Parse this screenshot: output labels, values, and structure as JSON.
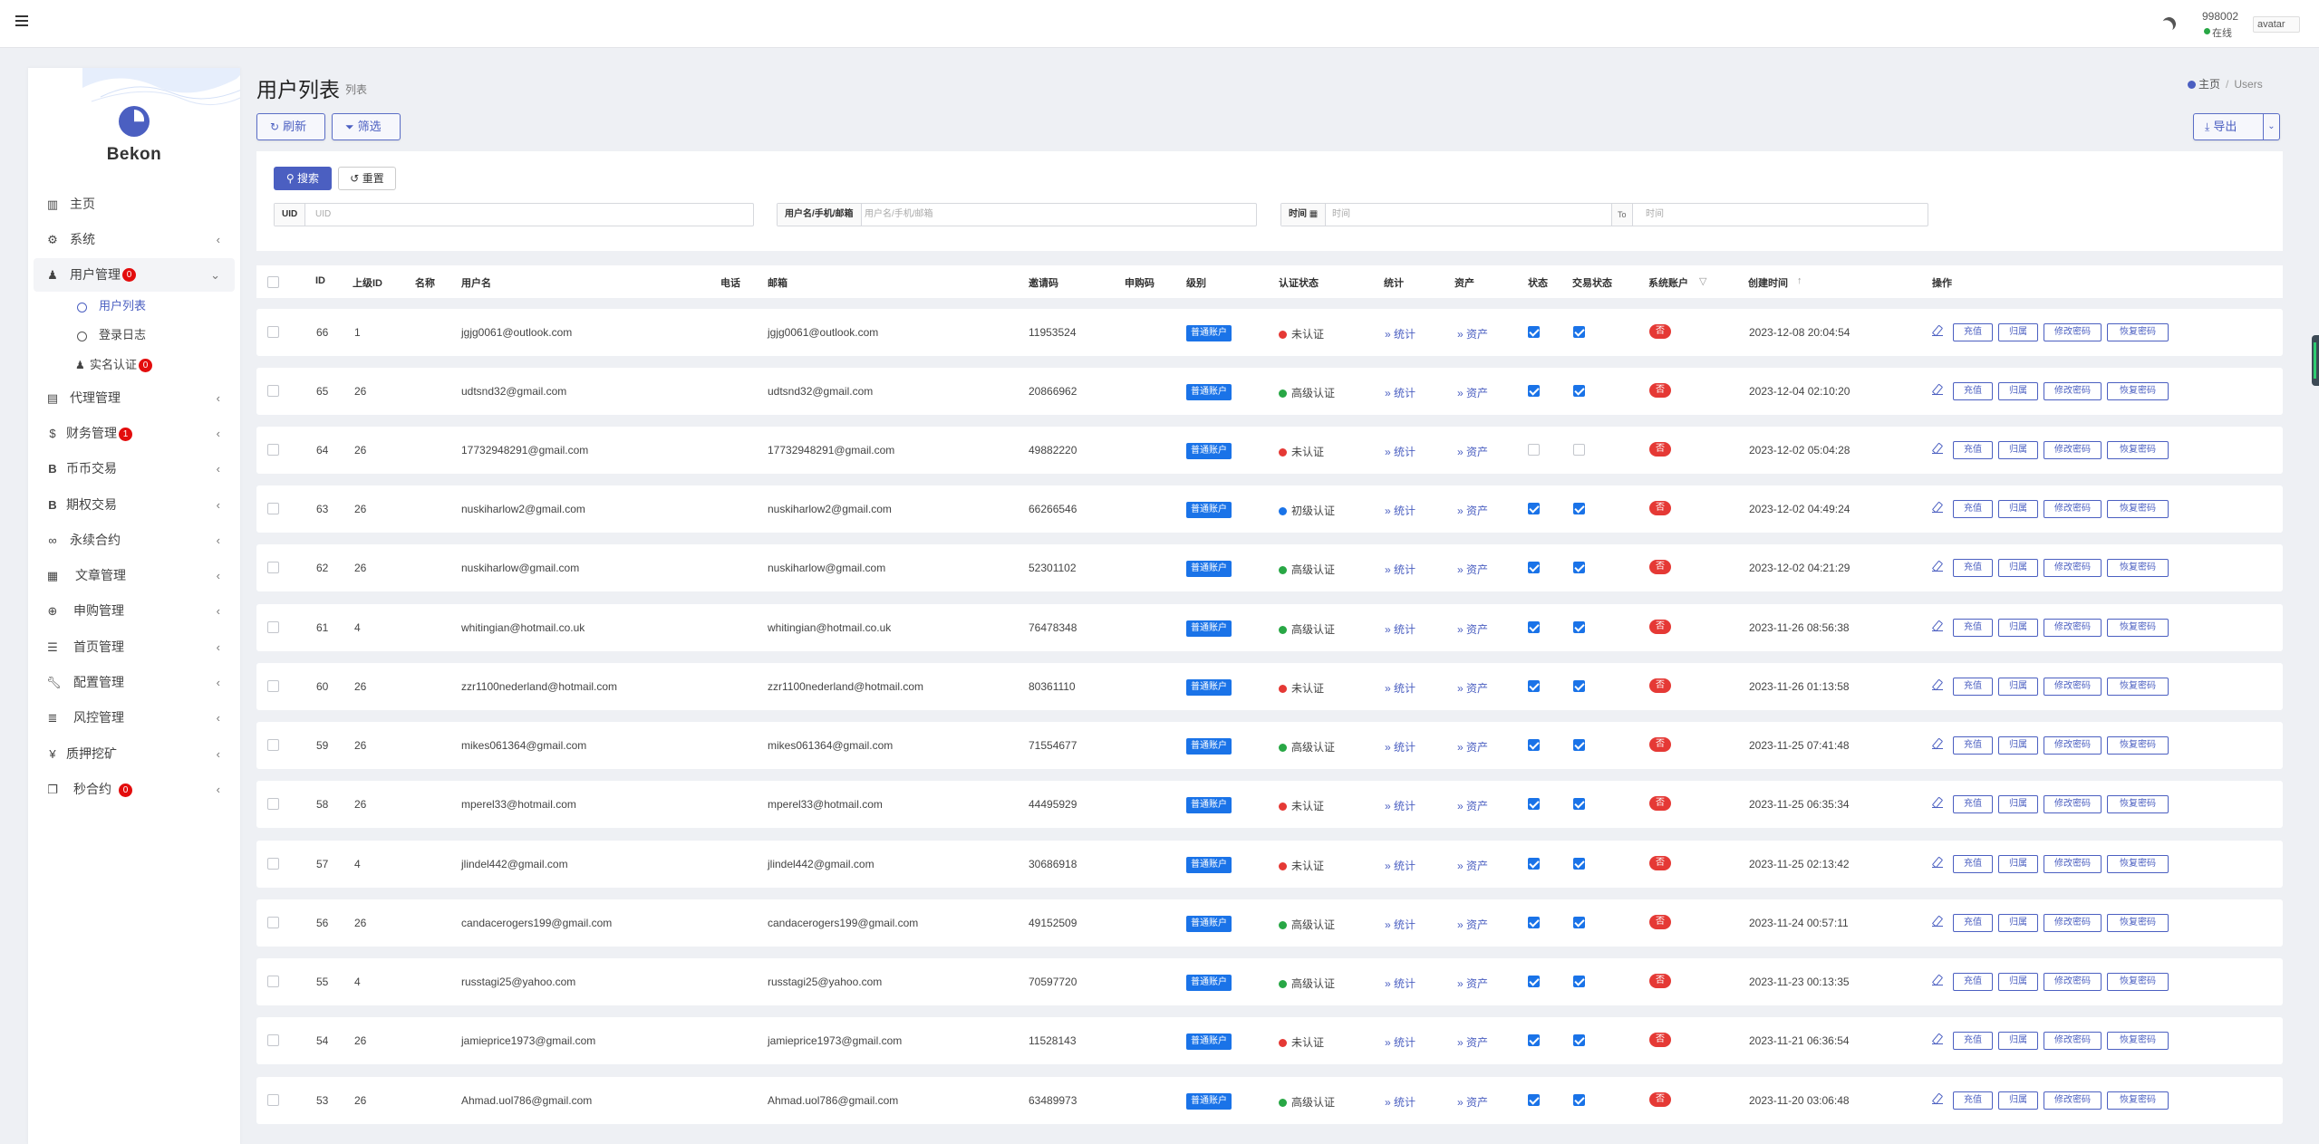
{
  "topbar": {
    "user_id": "998002",
    "user_status": "在线",
    "avatar_alt": "avatar"
  },
  "sidebar": {
    "brand": "Bekon",
    "items": [
      {
        "label": "主页",
        "icon": "chart-icon",
        "badge": ""
      },
      {
        "label": "系统",
        "icon": "gear-icon",
        "badge": ""
      },
      {
        "label": "用户管理",
        "icon": "user-icon",
        "badge": "0"
      },
      {
        "label": "代理管理",
        "icon": "id-card-icon",
        "badge": ""
      },
      {
        "label": "财务管理",
        "icon": "dollar-icon",
        "badge": "1"
      },
      {
        "label": "币币交易",
        "icon": "bitcoin-icon",
        "badge": ""
      },
      {
        "label": "期权交易",
        "icon": "bitcoin-icon",
        "badge": ""
      },
      {
        "label": "永续合约",
        "icon": "link-icon",
        "badge": ""
      },
      {
        "label": "文章管理",
        "icon": "newspaper-icon",
        "badge": ""
      },
      {
        "label": "申购管理",
        "icon": "support-icon",
        "badge": ""
      },
      {
        "label": "首页管理",
        "icon": "list-icon",
        "badge": ""
      },
      {
        "label": "配置管理",
        "icon": "wrench-icon",
        "badge": ""
      },
      {
        "label": "风控管理",
        "icon": "list-alt-icon",
        "badge": ""
      },
      {
        "label": "质押挖矿",
        "icon": "yen-icon",
        "badge": ""
      },
      {
        "label": "秒合约",
        "icon": "copy-icon",
        "badge": "0"
      }
    ],
    "subitems": [
      {
        "label": "用户列表"
      },
      {
        "label": "登录日志"
      },
      {
        "label": "实名认证",
        "badge": "0"
      }
    ]
  },
  "header": {
    "title": "用户列表",
    "subtitle": "列表",
    "breadcrumb_home": "主页",
    "breadcrumb_current": "Users"
  },
  "toolbar": {
    "refresh": "刷新",
    "filter": "筛选",
    "export": "导出"
  },
  "search": {
    "search_btn": "搜索",
    "reset_btn": "重置",
    "uid_label": "UID",
    "uid_placeholder": "UID",
    "user_label": "用户名/手机/邮箱",
    "user_placeholder": "用户名/手机/邮箱",
    "time_label": "时间",
    "time_from_placeholder": "时间",
    "time_to": "To",
    "time_to_placeholder": "时间"
  },
  "table": {
    "columns": [
      "ID",
      "上级ID",
      "名称",
      "用户名",
      "电话",
      "邮箱",
      "邀请码",
      "申购码",
      "级别",
      "认证状态",
      "统计",
      "资产",
      "状态",
      "交易状态",
      "系统账户",
      "创建时间",
      "操作"
    ],
    "level_tag": "普通账户",
    "stat_link": "» 统计",
    "asset_link": "» 资产",
    "sys_no": "否",
    "actions": [
      "充值",
      "归属",
      "修改密码",
      "恢复密码"
    ],
    "rows": [
      {
        "id": "66",
        "parent": "1",
        "username": "jgjg0061@outlook.com",
        "email": "jgjg0061@outlook.com",
        "invite": "11953524",
        "auth": "未认证",
        "auth_color": "#e53935",
        "status": true,
        "trade": true,
        "created": "2023-12-08 20:04:54"
      },
      {
        "id": "65",
        "parent": "26",
        "username": "udtsnd32@gmail.com",
        "email": "udtsnd32@gmail.com",
        "invite": "20866962",
        "auth": "高级认证",
        "auth_color": "#28a745",
        "status": true,
        "trade": true,
        "created": "2023-12-04 02:10:20"
      },
      {
        "id": "64",
        "parent": "26",
        "username": "17732948291@gmail.com",
        "email": "17732948291@gmail.com",
        "invite": "49882220",
        "auth": "未认证",
        "auth_color": "#e53935",
        "status": false,
        "trade": false,
        "created": "2023-12-02 05:04:28"
      },
      {
        "id": "63",
        "parent": "26",
        "username": "nuskiharlow2@gmail.com",
        "email": "nuskiharlow2@gmail.com",
        "invite": "66266546",
        "auth": "初级认证",
        "auth_color": "#1a73e8",
        "status": true,
        "trade": true,
        "created": "2023-12-02 04:49:24"
      },
      {
        "id": "62",
        "parent": "26",
        "username": "nuskiharlow@gmail.com",
        "email": "nuskiharlow@gmail.com",
        "invite": "52301102",
        "auth": "高级认证",
        "auth_color": "#28a745",
        "status": true,
        "trade": true,
        "created": "2023-12-02 04:21:29"
      },
      {
        "id": "61",
        "parent": "4",
        "username": "whitingian@hotmail.co.uk",
        "email": "whitingian@hotmail.co.uk",
        "invite": "76478348",
        "auth": "高级认证",
        "auth_color": "#28a745",
        "status": true,
        "trade": true,
        "created": "2023-11-26 08:56:38"
      },
      {
        "id": "60",
        "parent": "26",
        "username": "zzr1100nederland@hotmail.com",
        "email": "zzr1100nederland@hotmail.com",
        "invite": "80361110",
        "auth": "未认证",
        "auth_color": "#e53935",
        "status": true,
        "trade": true,
        "created": "2023-11-26 01:13:58"
      },
      {
        "id": "59",
        "parent": "26",
        "username": "mikes061364@gmail.com",
        "email": "mikes061364@gmail.com",
        "invite": "71554677",
        "auth": "高级认证",
        "auth_color": "#28a745",
        "status": true,
        "trade": true,
        "created": "2023-11-25 07:41:48"
      },
      {
        "id": "58",
        "parent": "26",
        "username": "mperel33@hotmail.com",
        "email": "mperel33@hotmail.com",
        "invite": "44495929",
        "auth": "未认证",
        "auth_color": "#e53935",
        "status": true,
        "trade": true,
        "created": "2023-11-25 06:35:34"
      },
      {
        "id": "57",
        "parent": "4",
        "username": "jlindel442@gmail.com",
        "email": "jlindel442@gmail.com",
        "invite": "30686918",
        "auth": "未认证",
        "auth_color": "#e53935",
        "status": true,
        "trade": true,
        "created": "2023-11-25 02:13:42"
      },
      {
        "id": "56",
        "parent": "26",
        "username": "candacerogers199@gmail.com",
        "email": "candacerogers199@gmail.com",
        "invite": "49152509",
        "auth": "高级认证",
        "auth_color": "#28a745",
        "status": true,
        "trade": true,
        "created": "2023-11-24 00:57:11"
      },
      {
        "id": "55",
        "parent": "4",
        "username": "russtagi25@yahoo.com",
        "email": "russtagi25@yahoo.com",
        "invite": "70597720",
        "auth": "高级认证",
        "auth_color": "#28a745",
        "status": true,
        "trade": true,
        "created": "2023-11-23 00:13:35"
      },
      {
        "id": "54",
        "parent": "26",
        "username": "jamieprice1973@gmail.com",
        "email": "jamieprice1973@gmail.com",
        "invite": "11528143",
        "auth": "未认证",
        "auth_color": "#e53935",
        "status": true,
        "trade": true,
        "created": "2023-11-21 06:36:54"
      },
      {
        "id": "53",
        "parent": "26",
        "username": "Ahmad.uol786@gmail.com",
        "email": "Ahmad.uol786@gmail.com",
        "invite": "63489973",
        "auth": "高级认证",
        "auth_color": "#28a745",
        "status": true,
        "trade": true,
        "created": "2023-11-20 03:06:48"
      }
    ]
  }
}
